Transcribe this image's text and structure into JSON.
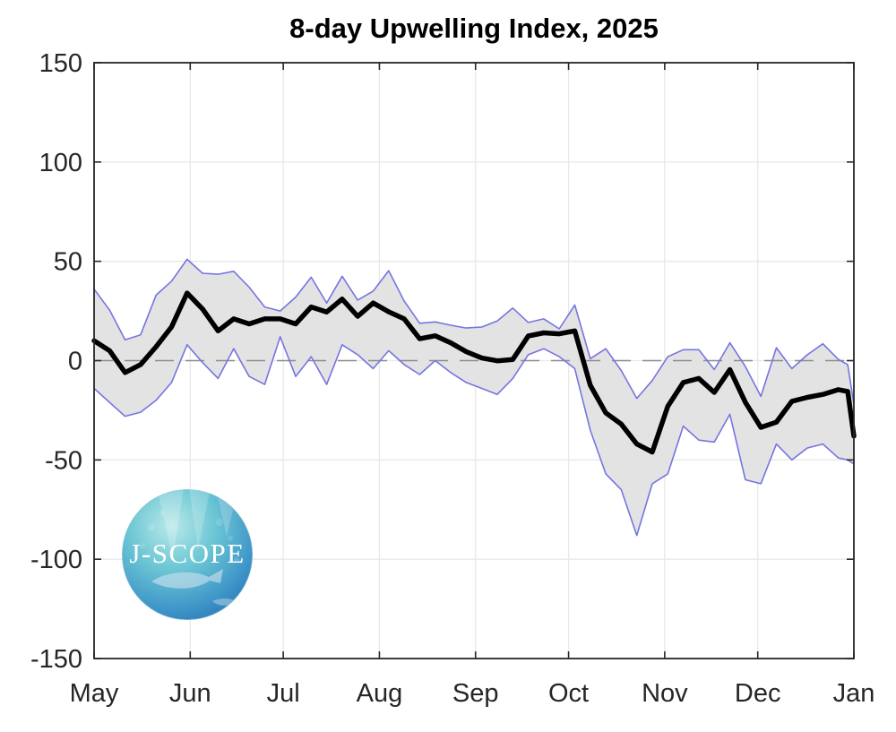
{
  "figure": {
    "title": "8-day Upwelling Index, 2025"
  },
  "logo": {
    "text": "J-SCOPE"
  },
  "chart_data": {
    "type": "line",
    "title": "8-day Upwelling Index, 2025",
    "xlabel": "",
    "ylabel": "",
    "ylim": [
      -150,
      150
    ],
    "y_ticks": [
      -150,
      -100,
      -50,
      0,
      50,
      100,
      150
    ],
    "x_tick_labels": [
      "May",
      "Jun",
      "Jul",
      "Aug",
      "Sep",
      "Oct",
      "Nov",
      "Dec",
      "Jan"
    ],
    "x_tick_days": [
      0,
      31,
      61,
      92,
      123,
      153,
      184,
      214,
      245
    ],
    "x_total_days": 245,
    "grid": true,
    "zero_line": {
      "value": 0,
      "style": "dashed"
    },
    "band": {
      "fill": "#e3e3e3",
      "edge_color": "#7575e0"
    },
    "days": [
      0,
      5,
      10,
      15,
      20,
      25,
      30,
      35,
      40,
      45,
      50,
      55,
      60,
      65,
      70,
      75,
      80,
      85,
      90,
      95,
      100,
      105,
      110,
      115,
      120,
      125,
      130,
      135,
      140,
      145,
      150,
      155,
      160,
      165,
      170,
      175,
      180,
      185,
      190,
      195,
      200,
      205,
      210,
      215,
      220,
      225,
      230,
      235,
      240,
      243,
      245
    ],
    "series": [
      {
        "name": "ensemble mean",
        "color": "#000000",
        "values": [
          10,
          5,
          -6,
          -2,
          7,
          17,
          34,
          26,
          15,
          21,
          18.5,
          21,
          21,
          18.5,
          27,
          24.5,
          31,
          22.3,
          29,
          24.6,
          21,
          11,
          12.5,
          9,
          4.5,
          1.3,
          -0.1,
          0.6,
          12.4,
          14,
          13.5,
          15,
          -12.4,
          -26.3,
          -32,
          -42,
          -46,
          -23,
          -11,
          -9,
          -16,
          -4.5,
          -21,
          -33.6,
          -31,
          -20.5,
          -18.5,
          -17,
          -14.6,
          -15.5,
          -38
        ]
      },
      {
        "name": "upper bound",
        "color": "#7575e0",
        "values": [
          36,
          25.5,
          10.5,
          13,
          33,
          40,
          51,
          44,
          43.5,
          45,
          37,
          27,
          25,
          32,
          42,
          29,
          42.5,
          30.5,
          35,
          45.3,
          30,
          18.8,
          19.5,
          17.8,
          16.4,
          16.9,
          20,
          26.5,
          19.2,
          21,
          16,
          28,
          1,
          6,
          -5,
          -19,
          -10,
          2,
          5.5,
          5.5,
          -4.5,
          9,
          -3,
          -18,
          6.5,
          -4,
          3,
          8.5,
          0.6,
          -2,
          -22
        ]
      },
      {
        "name": "lower bound",
        "color": "#7575e0",
        "values": [
          -14,
          -21,
          -28,
          -26,
          -20,
          -11,
          8,
          -1,
          -9,
          6,
          -8,
          -12,
          12,
          -8,
          2,
          -12,
          8,
          3,
          -4,
          5,
          -2,
          -7,
          0,
          -6,
          -11,
          -14,
          -17,
          -9,
          3,
          6,
          2,
          -4,
          -35,
          -57,
          -65,
          -88,
          -62,
          -57,
          -33,
          -40,
          -41,
          -27,
          -60,
          -62,
          -42,
          -50,
          -44,
          -42,
          -49,
          -50,
          -52
        ]
      }
    ]
  }
}
